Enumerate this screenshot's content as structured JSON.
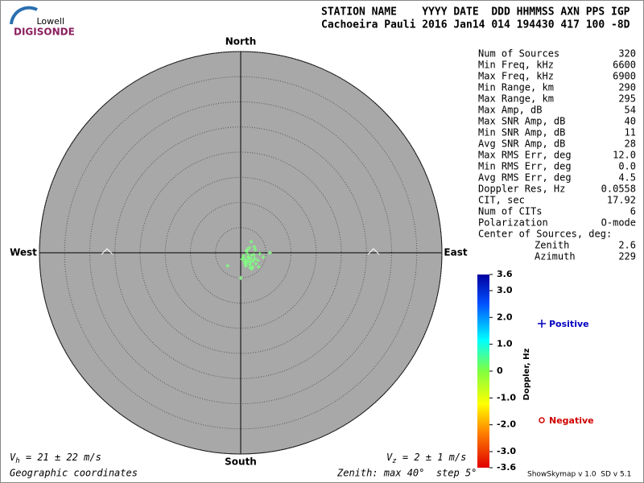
{
  "header": {
    "logo_top": "Lowell",
    "logo_bottom": "DIGISONDE",
    "columns": "STATION NAME    YYYY DATE  DDD HHMMSS AXN PPS IGP",
    "values": "Cachoeira Pauli 2016 Jan14 014 194430 417 100 -8D"
  },
  "stats": {
    "rows": [
      [
        "Num of Sources",
        "320"
      ],
      [
        "Min Freq, kHz",
        "6600"
      ],
      [
        "Max Freq, kHz",
        "6900"
      ],
      [
        "Min Range, km",
        "290"
      ],
      [
        "Max Range, km",
        "295"
      ],
      [
        "Max Amp, dB",
        "54"
      ],
      [
        "Max SNR Amp, dB",
        "40"
      ],
      [
        "Min SNR Amp, dB",
        "11"
      ],
      [
        "Avg SNR Amp, dB",
        "28"
      ],
      [
        "Max RMS Err, deg",
        "12.0"
      ],
      [
        "Min RMS Err, deg",
        "0.0"
      ],
      [
        "Avg RMS Err, deg",
        "4.5"
      ],
      [
        "Doppler Res, Hz",
        "0.0558"
      ],
      [
        "CIT, sec",
        "17.92"
      ],
      [
        "Num of CITs",
        "6"
      ],
      [
        "Polarization",
        "O-mode"
      ]
    ],
    "center_title": "Center of Sources, deg:",
    "center_rows": [
      [
        "Zenith",
        "2.6"
      ],
      [
        "Azimuth",
        "229"
      ]
    ]
  },
  "chart_data": {
    "type": "scatter",
    "directions": {
      "north": "North",
      "south": "South",
      "east": "East",
      "west": "West"
    },
    "rlim": [
      0,
      40
    ],
    "rticks": [
      5,
      10,
      15,
      20,
      25,
      30,
      35,
      40
    ],
    "color": "#80ff80",
    "x": [
      0.5,
      1.0,
      1.5,
      2.0,
      2.5,
      1.2,
      1.8,
      2.2,
      0.8,
      1.6,
      2.8,
      3.0,
      1.4,
      2.0,
      0.3,
      1.0,
      2.4,
      3.4,
      2.6,
      1.9,
      1.1,
      0.6,
      2.1,
      1.7,
      2.9,
      3.8,
      5.8,
      -2.6,
      0.0,
      2.2,
      4.5,
      3.6,
      1.3,
      2.7,
      0.9,
      1.5
    ],
    "y": [
      -1.0,
      -1.4,
      -0.8,
      -1.2,
      -1.6,
      -2.0,
      -2.4,
      -0.5,
      -1.8,
      -1.0,
      -1.1,
      -2.2,
      -0.2,
      -1.9,
      -1.3,
      -2.6,
      -2.8,
      -1.5,
      -0.4,
      -3.0,
      0.3,
      -0.6,
      2.2,
      1.0,
      0.6,
      -0.2,
      0.0,
      -2.6,
      -5.0,
      -3.2,
      -0.9,
      -2.8,
      0.6,
      1.2,
      -2.2,
      -1.6
    ],
    "colorbar": {
      "label": "Doppler, Hz",
      "lim": [
        -3.6,
        3.6
      ],
      "ticks": [
        3.6,
        {
          "value": 3,
          "label": "3.0"
        },
        {
          "value": 2,
          "label": "2.0"
        },
        {
          "value": 1,
          "label": "1.0"
        },
        0,
        {
          "value": -1,
          "label": "-1.0"
        },
        {
          "value": -2,
          "label": "-2.0"
        },
        {
          "value": -3,
          "label": "-3.0"
        },
        -3.6
      ]
    },
    "legend": {
      "positive": "Positive",
      "negative": "Negative"
    }
  },
  "footer": {
    "vh": {
      "symbol": "V",
      "sub": "h",
      "text": " = 21 ± 22 m/s"
    },
    "vz": {
      "symbol": "V",
      "sub": "z",
      "text": " = 2 ± 1 m/s"
    },
    "coords": "Geographic coordinates",
    "zenith": "Zenith: max 40°  step 5°",
    "version": "ShowSkymap v 1.0  SD v 5.1"
  }
}
